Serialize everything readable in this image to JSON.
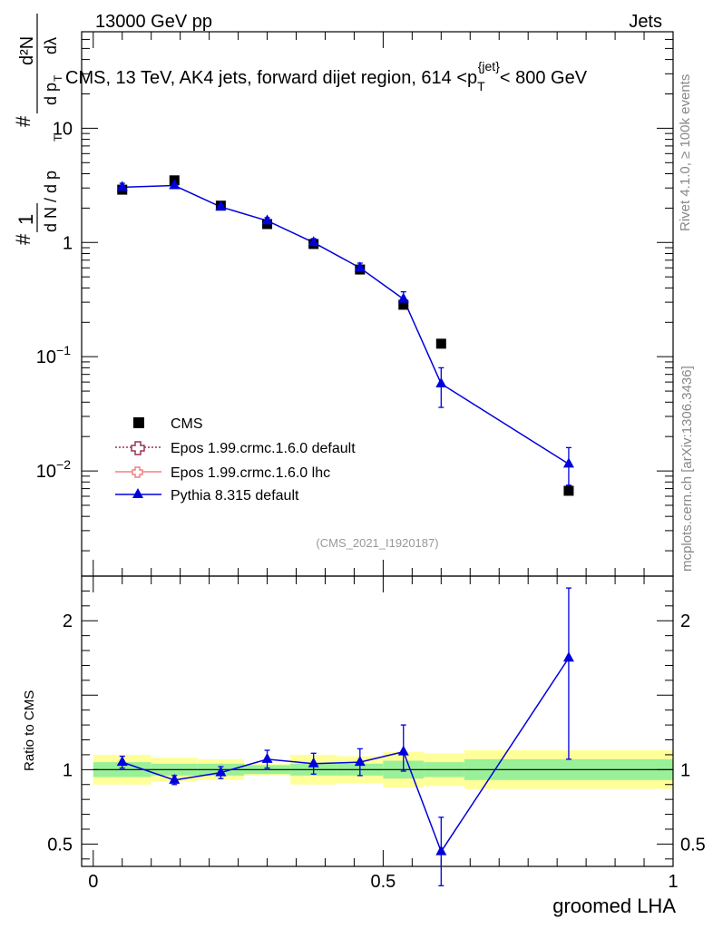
{
  "header": {
    "energy_label": "13000 GeV pp",
    "category_label": "Jets"
  },
  "side_labels": {
    "rivet": "Rivet 4.1.0, ≥ 100k events",
    "mcplots": "mcplots.cern.ch [arXiv:1306.3436]"
  },
  "chart_data": [
    {
      "type": "line",
      "title": "CMS, 13 TeV, AK4 jets, forward dijet region, 614 < p_T^{jet} < 800 GeV",
      "title_parts": {
        "before": "CMS, 13 TeV, AK4 jets, forward dijet region, 614 <",
        "p": "p",
        "sub": "T",
        "sup": "{jet}",
        "after": "< 800 GeV"
      },
      "ylabel": "1/dN/dp_T  d²N/dp_T dλ",
      "ylabel_parts": {
        "hash": "#",
        "one": "1",
        "dN_dpT": "d N / d p",
        "d2N": "d²N",
        "dpT_dlambda": "d p",
        "T": "T",
        "lambda": "dλ"
      },
      "yscale": "log",
      "ylim": [
        0.0012,
        70
      ],
      "xlim": [
        -0.02,
        1.0
      ],
      "y_ticks": [
        {
          "value": 0.01,
          "base": "10",
          "exp": "−2"
        },
        {
          "value": 0.1,
          "base": "10",
          "exp": "−1"
        },
        {
          "value": 1,
          "label": "1"
        },
        {
          "value": 10,
          "label": "10"
        }
      ],
      "watermark": "(CMS_2021_I1920187)",
      "legend_position": "lower-left",
      "series": [
        {
          "name": "CMS",
          "marker": "square",
          "color": "#000000",
          "x": [
            0.05,
            0.14,
            0.22,
            0.3,
            0.38,
            0.46,
            0.535,
            0.6,
            0.82
          ],
          "y": [
            2.9,
            3.5,
            2.1,
            1.45,
            0.97,
            0.58,
            0.285,
            0.13,
            0.0067
          ]
        },
        {
          "name": "Epos 1.99.crmc.1.6.0 default",
          "marker": "open-cross",
          "color": "#993355",
          "line": "dotted",
          "x": [],
          "y": []
        },
        {
          "name": "Epos 1.99.crmc.1.6.0 lhc",
          "marker": "open-cross",
          "color": "#f08080",
          "line": "solid",
          "x": [],
          "y": []
        },
        {
          "name": "Pythia 8.315 default",
          "marker": "triangle",
          "color": "#0000dd",
          "x": [
            0.05,
            0.14,
            0.22,
            0.3,
            0.38,
            0.46,
            0.535,
            0.6,
            0.82
          ],
          "y": [
            3.05,
            3.15,
            2.05,
            1.55,
            1.0,
            0.6,
            0.32,
            0.058,
            0.0115
          ],
          "yerr_low": [
            0.25,
            0.15,
            0.1,
            0.1,
            0.08,
            0.06,
            0.04,
            0.022,
            0.004
          ],
          "yerr_high": [
            0.25,
            0.15,
            0.1,
            0.1,
            0.08,
            0.06,
            0.05,
            0.022,
            0.0045
          ]
        }
      ]
    },
    {
      "type": "line",
      "ylabel": "Ratio to CMS",
      "xlabel": "groomed LHA",
      "ylim": [
        0.35,
        2.3
      ],
      "xlim": [
        -0.02,
        1.0
      ],
      "y_ticks": [
        {
          "value": 0.5,
          "label": "0.5"
        },
        {
          "value": 1,
          "label": "1"
        },
        {
          "value": 2,
          "label": "2"
        }
      ],
      "x_ticks": [
        {
          "value": 0,
          "label": "0"
        },
        {
          "value": 0.5,
          "label": "0.5"
        },
        {
          "value": 1,
          "label": "1"
        }
      ],
      "bands": {
        "edges": [
          0.0,
          0.1,
          0.18,
          0.26,
          0.34,
          0.42,
          0.5,
          0.57,
          0.64,
          1.0
        ],
        "green_low": [
          0.95,
          0.96,
          0.96,
          0.97,
          0.96,
          0.96,
          0.94,
          0.95,
          0.93
        ],
        "green_high": [
          1.05,
          1.04,
          1.04,
          1.03,
          1.04,
          1.04,
          1.06,
          1.05,
          1.07
        ],
        "yellow_low": [
          0.9,
          0.92,
          0.93,
          0.96,
          0.9,
          0.91,
          0.88,
          0.89,
          0.87
        ],
        "yellow_high": [
          1.1,
          1.08,
          1.07,
          1.04,
          1.1,
          1.09,
          1.12,
          1.11,
          1.13
        ]
      },
      "series": [
        {
          "name": "Pythia 8.315 default",
          "color": "#0000dd",
          "x": [
            0.05,
            0.14,
            0.22,
            0.3,
            0.38,
            0.46,
            0.535,
            0.6,
            0.82
          ],
          "y": [
            1.05,
            0.93,
            0.98,
            1.07,
            1.04,
            1.05,
            1.12,
            0.45,
            1.75
          ],
          "yerr_low": [
            0.04,
            0.03,
            0.04,
            0.06,
            0.07,
            0.09,
            0.13,
            0.23,
            0.68
          ],
          "yerr_high": [
            0.04,
            0.03,
            0.04,
            0.06,
            0.07,
            0.09,
            0.18,
            0.23,
            0.47
          ]
        }
      ]
    }
  ]
}
